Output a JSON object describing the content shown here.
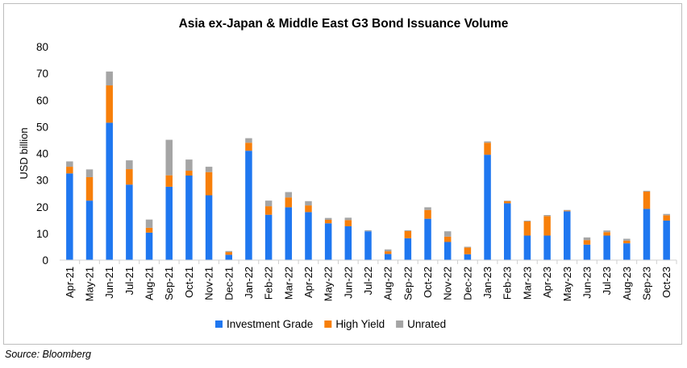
{
  "source_note": "Source: Bloomberg",
  "chart_data": {
    "type": "bar",
    "stacked": true,
    "title": "Asia ex-Japan & Middle East G3 Bond Issuance Volume",
    "xlabel": "",
    "ylabel": "USD billion",
    "ylim": [
      0,
      80
    ],
    "yticks": [
      0,
      10,
      20,
      30,
      40,
      50,
      60,
      70,
      80
    ],
    "grid": false,
    "legend_position": "bottom",
    "categories": [
      "Apr-21",
      "May-21",
      "Jun-21",
      "Jul-21",
      "Aug-21",
      "Sep-21",
      "Oct-21",
      "Nov-21",
      "Dec-21",
      "Jan-22",
      "Feb-22",
      "Mar-22",
      "Apr-22",
      "May-22",
      "Jun-22",
      "Jul-22",
      "Aug-22",
      "Sep-22",
      "Oct-22",
      "Nov-22",
      "Dec-22",
      "Jan-23",
      "Feb-23",
      "Mar-23",
      "Apr-23",
      "May-23",
      "Jun-23",
      "Jul-23",
      "Aug-23",
      "Sep-23",
      "Oct-23"
    ],
    "series": [
      {
        "name": "Investment Grade",
        "color": "#1f77f0",
        "values": [
          32.5,
          22.3,
          51.5,
          28.3,
          10.3,
          27.5,
          31.7,
          24.3,
          2.0,
          41.0,
          17.0,
          19.8,
          18.0,
          13.8,
          12.7,
          10.8,
          2.3,
          8.2,
          15.5,
          6.8,
          2.2,
          39.5,
          21.3,
          9.2,
          9.2,
          18.3,
          5.8,
          9.2,
          6.3,
          19.2,
          14.8
        ]
      },
      {
        "name": "High Yield",
        "color": "#f77f0a",
        "values": [
          2.5,
          8.8,
          14.0,
          5.8,
          1.8,
          4.3,
          1.8,
          8.7,
          1.0,
          3.0,
          3.2,
          3.7,
          2.5,
          1.3,
          2.3,
          0.0,
          1.0,
          2.7,
          3.3,
          2.0,
          2.5,
          4.5,
          0.8,
          5.3,
          7.3,
          0.3,
          1.7,
          1.3,
          1.0,
          6.5,
          2.0
        ]
      },
      {
        "name": "Unrated",
        "color": "#a5a5a5",
        "values": [
          2.0,
          2.9,
          5.2,
          3.3,
          3.1,
          13.3,
          4.2,
          2.0,
          0.4,
          1.7,
          2.1,
          2.0,
          1.6,
          0.7,
          0.9,
          0.4,
          0.7,
          0.3,
          1.0,
          2.0,
          0.3,
          0.5,
          0.2,
          0.3,
          0.4,
          0.2,
          1.0,
          0.6,
          0.7,
          0.3,
          0.5
        ]
      }
    ]
  }
}
